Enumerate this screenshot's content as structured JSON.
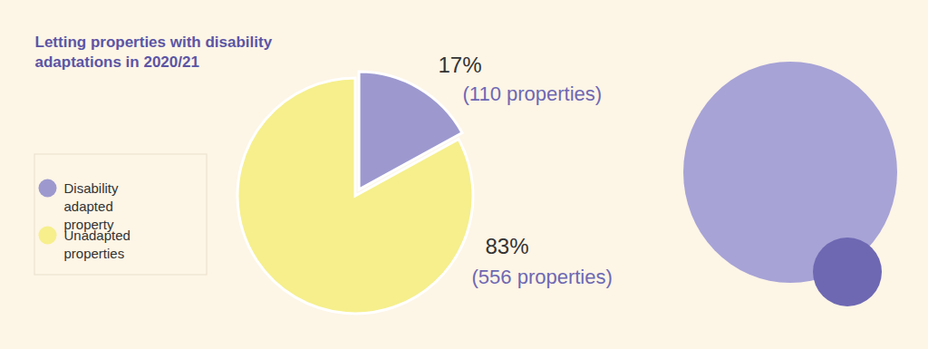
{
  "chart_data": {
    "type": "pie",
    "title": "Letting properties with disability adaptations in 2020/21",
    "categories": [
      "Disability adapted property",
      "Unadapted properties"
    ],
    "values": [
      17,
      83
    ],
    "value_labels": [
      "17%",
      "83%"
    ],
    "counts": [
      110,
      556
    ],
    "count_labels": [
      "(110 properties)",
      "(556 properties)"
    ],
    "colors": [
      "#9d99cf",
      "#f6ef8c"
    ],
    "legend": "left",
    "data_labels": true
  }
}
